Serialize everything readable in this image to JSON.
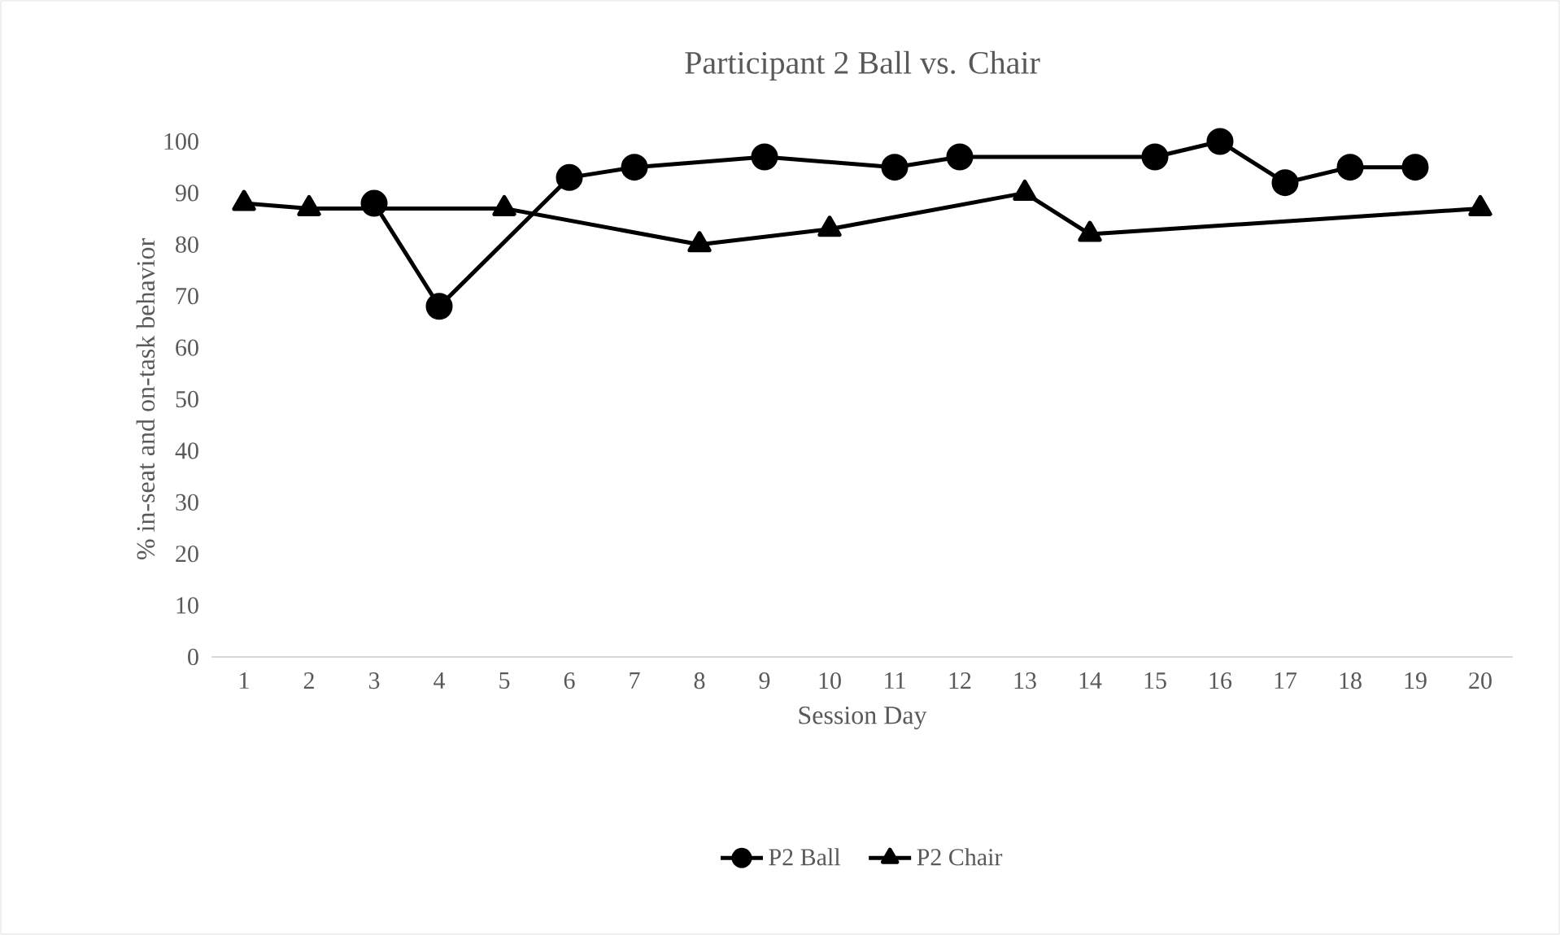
{
  "chart_data": {
    "type": "line",
    "title": "Participant 2 Ball vs. Chair",
    "xlabel": "Session Day",
    "ylabel": "% in-seat and on-task behavior",
    "xlim": [
      0.5,
      20.5
    ],
    "xticks": [
      1,
      2,
      3,
      4,
      5,
      6,
      7,
      8,
      9,
      10,
      11,
      12,
      13,
      14,
      15,
      16,
      17,
      18,
      19,
      20
    ],
    "ylim": [
      0,
      100
    ],
    "yticks": [
      0,
      10,
      20,
      30,
      40,
      50,
      60,
      70,
      80,
      90,
      100
    ],
    "grid": false,
    "legend": "bottom",
    "line_style": "solid",
    "series": [
      {
        "name": "P2 Ball",
        "color": "#000000",
        "marker": "circle",
        "x": [
          3,
          4,
          6,
          7,
          9,
          11,
          12,
          15,
          16,
          17,
          18,
          19
        ],
        "values": [
          88,
          68,
          93,
          95,
          97,
          95,
          97,
          97,
          100,
          92,
          95,
          95
        ]
      },
      {
        "name": "P2 Chair",
        "color": "#000000",
        "marker": "triangle",
        "x": [
          1,
          2,
          5,
          8,
          10,
          13,
          14,
          20
        ],
        "values": [
          88,
          87,
          87,
          80,
          83,
          90,
          82,
          87
        ]
      }
    ]
  }
}
